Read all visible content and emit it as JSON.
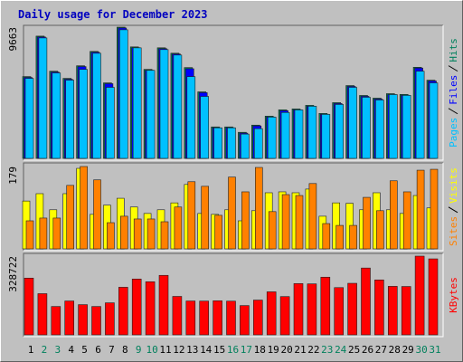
{
  "title": "Daily usage for December 2023",
  "chart_data": [
    {
      "type": "bar",
      "ylim": [
        0,
        9663
      ],
      "yticks": [
        9663
      ],
      "series": [
        {
          "name": "Hits",
          "color": "#00805c",
          "values": [
            6024,
            9003,
            6421,
            5892,
            6819,
            7878,
            5561,
            9663,
            8209,
            6554,
            8143,
            7745,
            6686,
            4899,
            2317,
            2317,
            1920,
            2449,
            3111,
            3575,
            3641,
            3906,
            3310,
            4104,
            5362,
            4634,
            4435,
            4766,
            4712,
            6710,
            5759
          ]
        },
        {
          "name": "Files",
          "color": "#0000ff",
          "values": [
            5960,
            8940,
            6360,
            5830,
            6760,
            7820,
            5500,
            9600,
            8150,
            6490,
            8080,
            7690,
            6600,
            4840,
            2260,
            2260,
            1860,
            2390,
            3050,
            3510,
            3580,
            3840,
            3250,
            4040,
            5300,
            4570,
            4370,
            4700,
            4650,
            6650,
            5700
          ]
        },
        {
          "name": "Pages",
          "color": "#00c0ff",
          "values": [
            5890,
            8870,
            6290,
            5760,
            6550,
            7740,
            5230,
            9470,
            8140,
            6480,
            8010,
            7610,
            6020,
            4560,
            2250,
            2250,
            1790,
            2190,
            3040,
            3380,
            3570,
            3840,
            3240,
            3970,
            5230,
            4500,
            4300,
            4700,
            4640,
            6420,
            5560
          ]
        }
      ]
    },
    {
      "type": "bar",
      "ylim": [
        0,
        179
      ],
      "yticks": [
        179
      ],
      "series": [
        {
          "name": "Visits",
          "color": "#ffff00",
          "values": [
            104,
            120,
            85,
            120,
            175,
            75,
            95,
            110,
            91,
            77,
            85,
            100,
            140,
            77,
            75,
            85,
            61,
            83,
            122,
            124,
            122,
            130,
            71,
            100,
            99,
            85,
            122,
            85,
            77,
            116,
            89
          ]
        },
        {
          "name": "Sites",
          "color": "#ff8000",
          "values": [
            61,
            67,
            67,
            138,
            179,
            150,
            57,
            71,
            65,
            65,
            59,
            91,
            146,
            136,
            73,
            156,
            124,
            177,
            81,
            118,
            116,
            142,
            55,
            51,
            51,
            112,
            83,
            148,
            124,
            171,
            173
          ]
        }
      ]
    },
    {
      "type": "bar",
      "ylim": [
        0,
        328722
      ],
      "yticks": [
        328722
      ],
      "categories": [
        "1",
        "2",
        "3",
        "4",
        "5",
        "6",
        "7",
        "8",
        "9",
        "10",
        "11",
        "12",
        "13",
        "14",
        "15",
        "16",
        "17",
        "18",
        "19",
        "20",
        "21",
        "22",
        "23",
        "24",
        "25",
        "26",
        "27",
        "28",
        "29",
        "30",
        "31"
      ],
      "category_colors": [
        "#000000",
        "#00805c",
        "#00805c",
        "#000000",
        "#000000",
        "#000000",
        "#000000",
        "#000000",
        "#00805c",
        "#00805c",
        "#000000",
        "#000000",
        "#000000",
        "#000000",
        "#000000",
        "#00805c",
        "#00805c",
        "#000000",
        "#000000",
        "#000000",
        "#000000",
        "#000000",
        "#00805c",
        "#00805c",
        "#000000",
        "#000000",
        "#000000",
        "#000000",
        "#000000",
        "#00805c",
        "#00805c"
      ],
      "series": [
        {
          "name": "KBytes",
          "color": "#ff0000",
          "values": [
            236964,
            171990,
            118482,
            141414,
            126126,
            118482,
            133770,
            198744,
            233142,
            221676,
            248430,
            160524,
            141414,
            141000,
            142200,
            140800,
            122304,
            145236,
            179634,
            159800,
            214032,
            212900,
            240786,
            197300,
            215200,
            279006,
            229320,
            202566,
            201900,
            328722,
            317226
          ]
        }
      ]
    }
  ]
}
